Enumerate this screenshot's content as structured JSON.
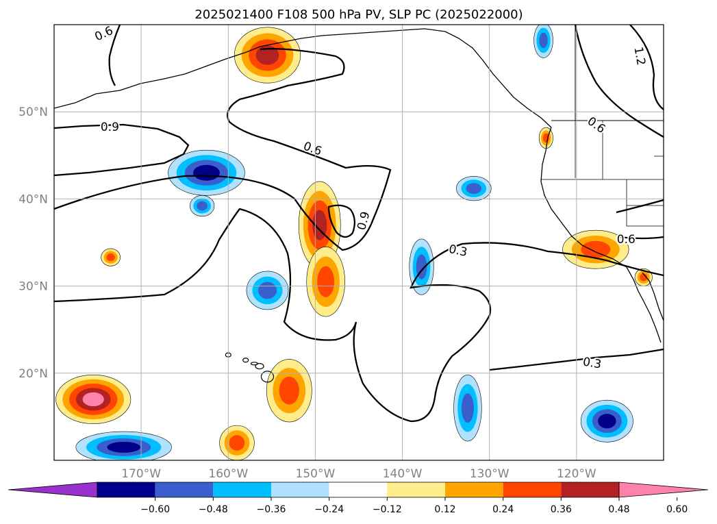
{
  "chart_data": {
    "type": "contour-map",
    "title": "2025021400 F108 500 hPa PV, SLP PC (2025022000)",
    "grid": true,
    "lon_range": [
      -180,
      -110
    ],
    "lat_range": [
      10,
      60
    ],
    "x_ticks": [
      {
        "value": -170,
        "label": "170°W"
      },
      {
        "value": -160,
        "label": "160°W"
      },
      {
        "value": -150,
        "label": "150°W"
      },
      {
        "value": -140,
        "label": "140°W"
      },
      {
        "value": -130,
        "label": "130°W"
      },
      {
        "value": -120,
        "label": "120°W"
      }
    ],
    "y_ticks": [
      {
        "value": 20,
        "label": "20°N"
      },
      {
        "value": 30,
        "label": "30°N"
      },
      {
        "value": 40,
        "label": "40°N"
      },
      {
        "value": 50,
        "label": "50°N"
      }
    ],
    "colorbar": {
      "levels": [
        -0.6,
        -0.48,
        -0.36,
        -0.24,
        -0.12,
        0.12,
        0.24,
        0.36,
        0.48,
        0.6
      ],
      "tick_labels": [
        "−0.60",
        "−0.48",
        "−0.36",
        "−0.24",
        "−0.12",
        "0.12",
        "0.24",
        "0.36",
        "0.48",
        "0.60"
      ],
      "colors": [
        "#9932CC",
        "#00008B",
        "#3A5FCD",
        "#00BFFF",
        "#B0E2FF",
        "#FFFFFF",
        "#FFEC8B",
        "#FFA500",
        "#FF4500",
        "#B22222",
        "#FF82AB"
      ],
      "extend": "both"
    },
    "contour_labels": [
      {
        "text": "0.6",
        "lon": -174.3,
        "lat": 59.0,
        "angle": -25
      },
      {
        "text": "0.9",
        "lon": -173.6,
        "lat": 48.3,
        "angle": 0
      },
      {
        "text": "0.6",
        "lon": -150.3,
        "lat": 45.8,
        "angle": 20
      },
      {
        "text": "0.9",
        "lon": -144.5,
        "lat": 37.5,
        "angle": -75
      },
      {
        "text": "0.3",
        "lon": -133.6,
        "lat": 34.1,
        "angle": 12
      },
      {
        "text": "0.6",
        "lon": -114.3,
        "lat": 35.4,
        "angle": 0
      },
      {
        "text": "0.6",
        "lon": -117.7,
        "lat": 48.5,
        "angle": 35
      },
      {
        "text": "1.2",
        "lon": -112.7,
        "lat": 56.4,
        "angle": 80
      },
      {
        "text": "0.3",
        "lon": -118.2,
        "lat": 21.2,
        "angle": 10
      }
    ],
    "pv_anomalies": [
      {
        "name": "pos-gulf-alaska",
        "value": 0.48,
        "lon": -155.5,
        "lat": 56.5,
        "rx": 3.8,
        "ry": 3.2
      },
      {
        "name": "pos-central-pacific-north",
        "value": 0.48,
        "lon": -149.5,
        "lat": 37.0,
        "rx": 2.4,
        "ry": 5.0
      },
      {
        "name": "pos-central-pacific-south",
        "value": 0.36,
        "lon": -148.8,
        "lat": 30.5,
        "rx": 2.2,
        "ry": 4.0
      },
      {
        "name": "pos-hawaii-east",
        "value": 0.36,
        "lon": -153.0,
        "lat": 18.0,
        "rx": 2.6,
        "ry": 3.6
      },
      {
        "name": "pos-southwest",
        "value": 0.6,
        "lon": -175.5,
        "lat": 17.0,
        "rx": 4.3,
        "ry": 2.8
      },
      {
        "name": "pos-south-central",
        "value": 0.36,
        "lon": -159.0,
        "lat": 12.0,
        "rx": 2.0,
        "ry": 2.0
      },
      {
        "name": "pos-socal",
        "value": 0.36,
        "lon": -117.8,
        "lat": 34.2,
        "rx": 3.8,
        "ry": 2.2
      },
      {
        "name": "pos-oregon-coast",
        "value": 0.36,
        "lon": -123.5,
        "lat": 47.0,
        "rx": 0.8,
        "ry": 1.2
      },
      {
        "name": "pos-baja",
        "value": 0.36,
        "lon": -112.3,
        "lat": 31.0,
        "rx": 1.0,
        "ry": 1.0
      },
      {
        "name": "pos-small-west",
        "value": 0.36,
        "lon": -173.5,
        "lat": 33.3,
        "rx": 1.1,
        "ry": 1.0
      },
      {
        "name": "neg-north-central",
        "value": -0.48,
        "lon": -162.5,
        "lat": 43.0,
        "rx": 4.4,
        "ry": 2.6
      },
      {
        "name": "neg-central-small",
        "value": -0.36,
        "lon": -163.0,
        "lat": 39.2,
        "rx": 1.4,
        "ry": 1.2
      },
      {
        "name": "neg-central",
        "value": -0.36,
        "lon": -155.5,
        "lat": 29.5,
        "rx": 2.4,
        "ry": 2.2
      },
      {
        "name": "neg-east-diagonal",
        "value": -0.36,
        "lon": -137.8,
        "lat": 32.2,
        "rx": 1.4,
        "ry": 3.2
      },
      {
        "name": "neg-east-north",
        "value": -0.36,
        "lon": -131.8,
        "lat": 41.2,
        "rx": 2.0,
        "ry": 1.4
      },
      {
        "name": "neg-southeast",
        "value": -0.48,
        "lon": -116.5,
        "lat": 14.5,
        "rx": 3.0,
        "ry": 2.4
      },
      {
        "name": "neg-south-central",
        "value": -0.36,
        "lon": -132.5,
        "lat": 16.0,
        "rx": 1.6,
        "ry": 3.8
      },
      {
        "name": "neg-southwest",
        "value": -0.48,
        "lon": -172.0,
        "lat": 11.5,
        "rx": 5.5,
        "ry": 1.8
      },
      {
        "name": "neg-alaska-panhandle",
        "value": -0.36,
        "lon": -123.8,
        "lat": 58.2,
        "rx": 1.1,
        "ry": 2.0
      }
    ]
  }
}
